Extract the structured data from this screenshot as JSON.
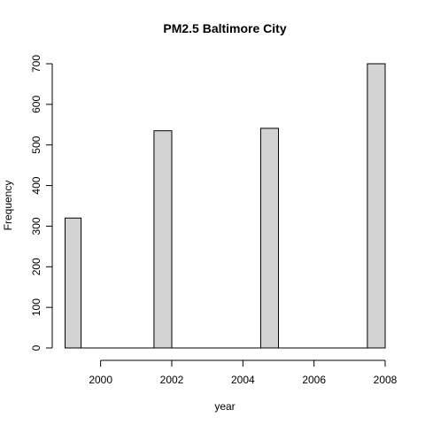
{
  "chart_data": {
    "type": "bar",
    "title": "PM2.5 Baltimore City",
    "xlabel": "year",
    "ylabel": "Frequency",
    "x_ticks": [
      2000,
      2002,
      2004,
      2006,
      2008
    ],
    "y_ticks": [
      0,
      100,
      200,
      300,
      400,
      500,
      600,
      700
    ],
    "xlim": [
      1999,
      2008
    ],
    "ylim": [
      0,
      700
    ],
    "bin_width": 0.45,
    "bins": [
      {
        "start": 1999.0,
        "end": 1999.45,
        "value": 320
      },
      {
        "start": 2001.5,
        "end": 2002.0,
        "value": 535
      },
      {
        "start": 2004.5,
        "end": 2005.0,
        "value": 541
      },
      {
        "start": 2007.5,
        "end": 2008.0,
        "value": 700
      }
    ],
    "grid": false,
    "legend": "none"
  }
}
